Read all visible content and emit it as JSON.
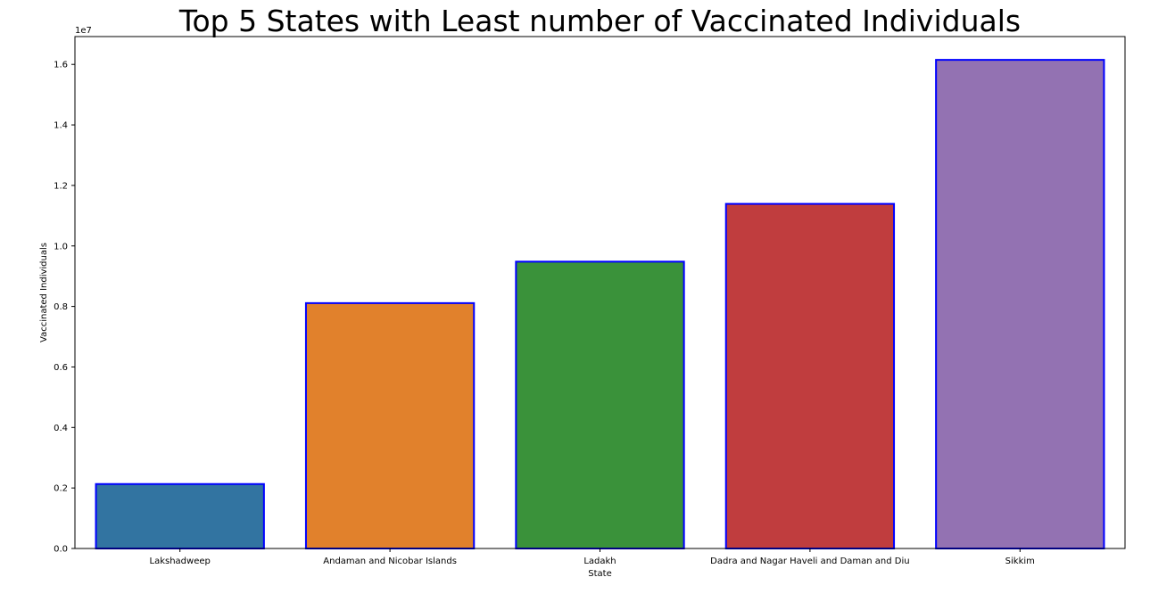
{
  "chart_data": {
    "type": "bar",
    "title": "Top 5 States with Least number of Vaccinated Individuals",
    "xlabel": "State",
    "ylabel": "Vaccinated Individuals",
    "y_offset_text": "1e7",
    "categories": [
      "Lakshadweep",
      "Andaman and Nicobar Islands",
      "Ladakh",
      "Dadra and Nagar Haveli and Daman and Diu",
      "Sikkim"
    ],
    "values": [
      2130000,
      8110000,
      9480000,
      11390000,
      16150000
    ],
    "colors": [
      "#3274a1",
      "#e1812c",
      "#3a923a",
      "#c03d3e",
      "#9372b2"
    ],
    "edge_color": "#0000ff",
    "ylim": [
      0,
      16920000
    ],
    "y_ticks": [
      0,
      2000000,
      4000000,
      6000000,
      8000000,
      10000000,
      12000000,
      14000000,
      16000000
    ],
    "y_tick_labels": [
      "0.0",
      "0.2",
      "0.4",
      "0.6",
      "0.8",
      "1.0",
      "1.2",
      "1.4",
      "1.6"
    ],
    "grid": false,
    "legend": "none"
  }
}
